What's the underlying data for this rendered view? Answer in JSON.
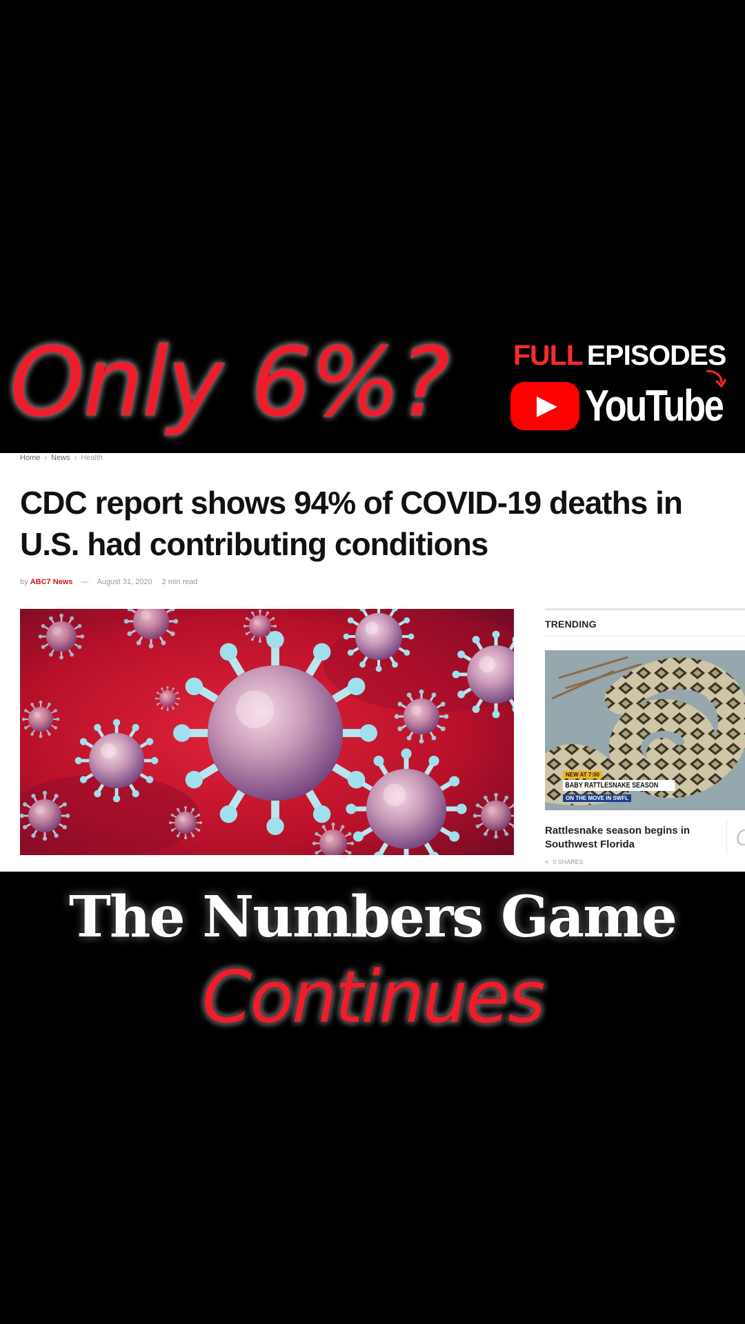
{
  "overlay": {
    "headline": "Only 6%?",
    "promo_full": "FULL",
    "promo_episodes": "EPISODES",
    "youtube_word": "YouTube",
    "bottom_line1": "The Numbers Game",
    "bottom_line2": "Continues",
    "accent_color": "#f01c2c"
  },
  "article": {
    "breadcrumb": [
      "Home",
      "News",
      "Health"
    ],
    "breadcrumb_separator": "›",
    "title": "CDC report shows 94% of COVID-19 deaths in U.S. had contributing conditions",
    "byline_prefix": "by",
    "author": "ABC7 News",
    "byline_dash": "—",
    "date": "August 31, 2020",
    "read_time": "2 min read",
    "hero_image_icon": "coronavirus-image"
  },
  "trending": {
    "heading": "TRENDING",
    "thumbnail_icon": "rattlesnake-image",
    "lower_third_top": "NEW AT 7:00",
    "lower_third_main": "BABY RATTLESNAKE SEASON",
    "lower_third_sub": "ON THE MOVE IN SWFL",
    "caption": "Rattlesnake season begins in Southwest Florida",
    "shares": "0 SHARES",
    "share_icon": "share-icon",
    "next_glyph": "C"
  }
}
